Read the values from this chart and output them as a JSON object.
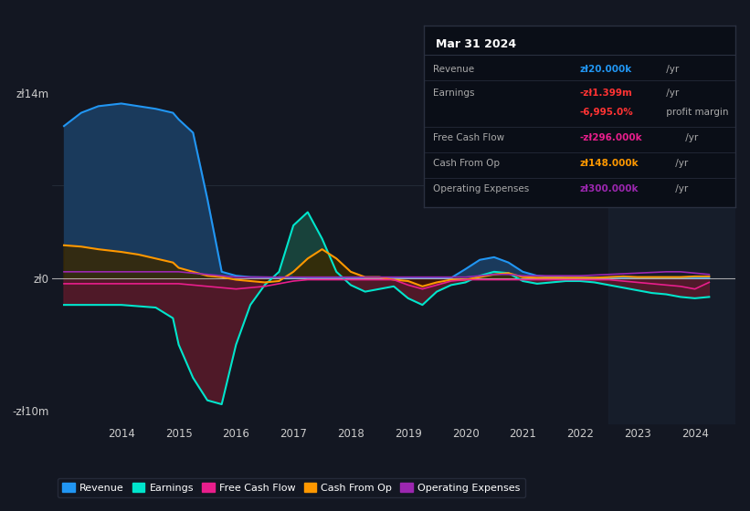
{
  "bg_color": "#131722",
  "plot_bg_color": "#131722",
  "revenue_color": "#2196f3",
  "earnings_color": "#00e5cc",
  "fcf_color": "#e91e8c",
  "cashfromop_color": "#ff9800",
  "opex_color": "#9c27b0",
  "revenue_fill_color": "#1a3a5c",
  "earnings_fill_pos_color": "#1a4a40",
  "earnings_fill_neg_color": "#5a1a2a",
  "cashfromop_fill_pos": "#3a2800",
  "cashfromop_fill_neg": "#3a1400",
  "ylim": [
    -11000000,
    16000000
  ],
  "xlim": [
    2012.8,
    2024.7
  ],
  "shaded_right_start": 2022.5,
  "years": [
    2013.0,
    2013.3,
    2013.6,
    2014.0,
    2014.3,
    2014.6,
    2014.9,
    2015.0,
    2015.25,
    2015.5,
    2015.75,
    2016.0,
    2016.25,
    2016.5,
    2016.75,
    2017.0,
    2017.25,
    2017.5,
    2017.75,
    2018.0,
    2018.25,
    2018.5,
    2018.75,
    2019.0,
    2019.25,
    2019.5,
    2019.75,
    2020.0,
    2020.25,
    2020.5,
    2020.75,
    2021.0,
    2021.25,
    2021.5,
    2021.75,
    2022.0,
    2022.25,
    2022.5,
    2022.75,
    2023.0,
    2023.25,
    2023.5,
    2023.75,
    2024.0,
    2024.25
  ],
  "revenue": [
    11500000,
    12500000,
    13000000,
    13200000,
    13000000,
    12800000,
    12500000,
    12000000,
    11000000,
    6000000,
    500000,
    200000,
    100000,
    80000,
    60000,
    50000,
    40000,
    40000,
    40000,
    40000,
    40000,
    40000,
    40000,
    40000,
    40000,
    40000,
    40000,
    700000,
    1400000,
    1600000,
    1200000,
    500000,
    200000,
    100000,
    50000,
    50000,
    50000,
    50000,
    50000,
    50000,
    50000,
    50000,
    30000,
    20000,
    20000
  ],
  "earnings": [
    -2000000,
    -2000000,
    -2000000,
    -2000000,
    -2100000,
    -2200000,
    -3000000,
    -5000000,
    -7500000,
    -9200000,
    -9500000,
    -5000000,
    -2000000,
    -500000,
    500000,
    4000000,
    5000000,
    3000000,
    500000,
    -500000,
    -1000000,
    -800000,
    -600000,
    -1500000,
    -2000000,
    -1000000,
    -500000,
    -300000,
    200000,
    500000,
    400000,
    -200000,
    -400000,
    -300000,
    -200000,
    -200000,
    -300000,
    -500000,
    -700000,
    -900000,
    -1100000,
    -1200000,
    -1400000,
    -1500000,
    -1399000
  ],
  "fcf": [
    -400000,
    -400000,
    -400000,
    -400000,
    -400000,
    -400000,
    -400000,
    -400000,
    -500000,
    -600000,
    -700000,
    -800000,
    -700000,
    -600000,
    -400000,
    -200000,
    -100000,
    -100000,
    -100000,
    -100000,
    -100000,
    -100000,
    -100000,
    -500000,
    -800000,
    -500000,
    -200000,
    -100000,
    -100000,
    -100000,
    -100000,
    -100000,
    -100000,
    -100000,
    -100000,
    -100000,
    -100000,
    -100000,
    -200000,
    -300000,
    -400000,
    -500000,
    -600000,
    -800000,
    -296000
  ],
  "cashfromop": [
    2500000,
    2400000,
    2200000,
    2000000,
    1800000,
    1500000,
    1200000,
    800000,
    500000,
    200000,
    100000,
    -100000,
    -200000,
    -300000,
    -200000,
    500000,
    1500000,
    2200000,
    1500000,
    500000,
    100000,
    100000,
    -100000,
    -200000,
    -600000,
    -300000,
    -100000,
    -100000,
    100000,
    300000,
    400000,
    100000,
    50000,
    50000,
    50000,
    50000,
    50000,
    100000,
    150000,
    100000,
    100000,
    100000,
    100000,
    150000,
    148000
  ],
  "opex": [
    500000,
    500000,
    500000,
    500000,
    500000,
    500000,
    500000,
    500000,
    400000,
    300000,
    200000,
    100000,
    100000,
    100000,
    100000,
    100000,
    100000,
    100000,
    100000,
    100000,
    100000,
    100000,
    100000,
    100000,
    100000,
    100000,
    100000,
    100000,
    200000,
    300000,
    300000,
    200000,
    200000,
    200000,
    200000,
    200000,
    250000,
    300000,
    350000,
    400000,
    450000,
    500000,
    500000,
    400000,
    300000
  ],
  "info_rows": [
    {
      "label": "Revenue",
      "value": "zł20.000k",
      "val_color": "#2196f3",
      "suffix": " /yr"
    },
    {
      "label": "Earnings",
      "value": "-zł1.399m",
      "val_color": "#ff3333",
      "suffix": " /yr"
    },
    {
      "label": "",
      "value": "-6,995.0%",
      "val_color": "#ff3333",
      "suffix": " profit margin"
    },
    {
      "label": "Free Cash Flow",
      "value": "-zł296.000k",
      "val_color": "#e91e8c",
      "suffix": " /yr"
    },
    {
      "label": "Cash From Op",
      "value": "zł148.000k",
      "val_color": "#ff9800",
      "suffix": " /yr"
    },
    {
      "label": "Operating Expenses",
      "value": "zł300.000k",
      "val_color": "#9c27b0",
      "suffix": " /yr"
    }
  ]
}
